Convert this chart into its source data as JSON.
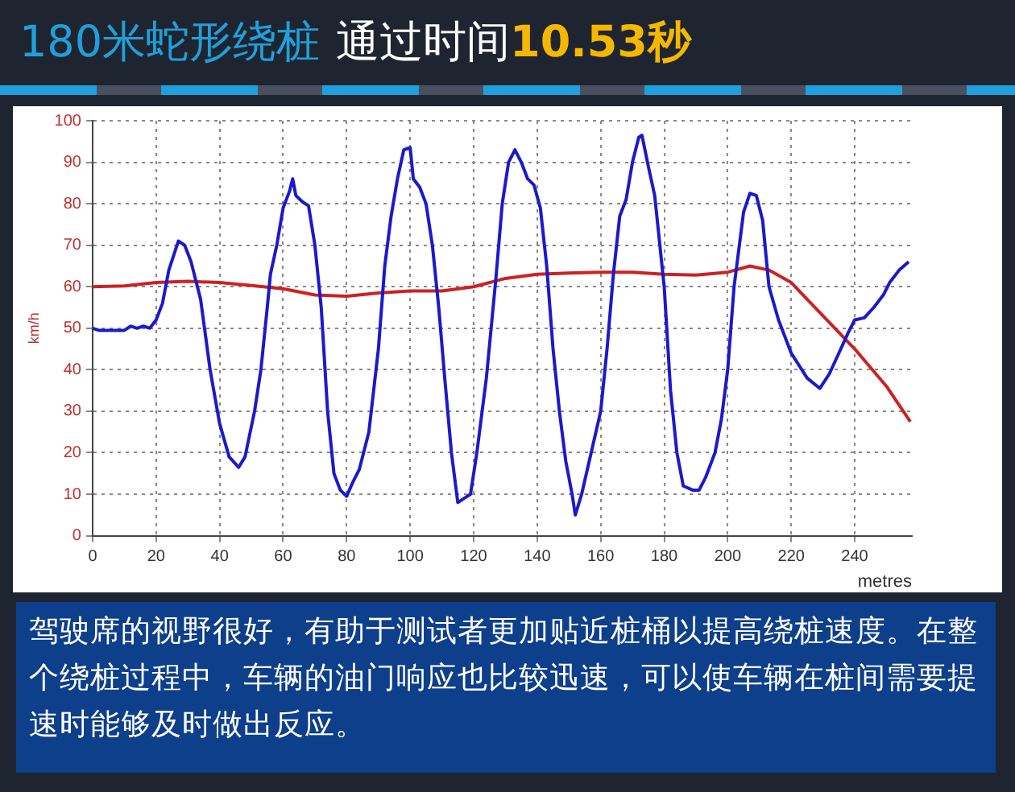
{
  "chart_data": {
    "type": "line",
    "title": "180米蛇形绕桩",
    "subtitle": "通过时间",
    "annotations": [
      "10.53秒",
      "驾驶席的视野很好，有助于测试者更加贴近桩桶以提高绕桩速度。在整个绕桩过程中，车辆的油门响应也比较迅速，可以使车辆在桩间需要提速时能够及时做出反应。"
    ],
    "xlabel": "metres",
    "ylabel": "km/h",
    "xlim": [
      0,
      258
    ],
    "xticks": [
      0,
      20,
      40,
      60,
      80,
      100,
      120,
      140,
      160,
      180,
      200,
      220,
      240
    ],
    "ylim": [
      0,
      100
    ],
    "yticks": [
      0,
      10,
      20,
      30,
      40,
      50,
      60,
      70,
      80,
      90,
      100
    ],
    "grid": true,
    "legend": false,
    "marker": "none",
    "line_style": "solid",
    "series": [
      {
        "color": "#1a1acc",
        "x": [
          0,
          2,
          10,
          12,
          14,
          16,
          18,
          20,
          22,
          24,
          27,
          29,
          31,
          34,
          37,
          40,
          43,
          46,
          48,
          51,
          53,
          55,
          56,
          58,
          60,
          62,
          63,
          64,
          66,
          68,
          70,
          72,
          74,
          76,
          78,
          80,
          82,
          84,
          87,
          90,
          92,
          94,
          96,
          98,
          100,
          101,
          103,
          105,
          107,
          109,
          111,
          113,
          115,
          117,
          119,
          121,
          124,
          127,
          129,
          131,
          133,
          135,
          137,
          139,
          141,
          143,
          145,
          147,
          149,
          151,
          152,
          154,
          157,
          160,
          162,
          164,
          166,
          168,
          170,
          172,
          173,
          175,
          177,
          180,
          182,
          184,
          186,
          189,
          191,
          193,
          196,
          198,
          200,
          202,
          205,
          207,
          209,
          211,
          213,
          216,
          220,
          225,
          229,
          232,
          235,
          238,
          240,
          243,
          246,
          249,
          251,
          254,
          257
        ],
        "values": [
          50,
          49.5,
          49.5,
          50.5,
          50,
          50.5,
          50,
          52,
          56,
          64,
          71,
          70,
          66,
          57,
          40,
          27,
          19,
          16.5,
          19,
          30,
          40,
          55,
          63,
          70,
          79,
          83,
          86,
          82,
          80.5,
          79.5,
          70,
          55,
          30,
          15,
          11,
          9.5,
          13,
          16,
          25,
          45,
          65,
          77,
          86,
          93,
          93.5,
          86,
          84,
          80,
          70,
          55,
          37,
          20,
          8,
          9,
          10,
          20,
          38,
          62,
          80,
          90,
          93,
          90,
          86,
          84.5,
          79,
          65,
          45,
          30,
          18,
          10,
          5,
          10,
          20,
          30,
          45,
          63,
          77,
          81,
          90,
          96,
          96.5,
          89,
          82,
          60,
          35,
          20,
          12,
          11,
          11,
          14,
          20,
          28,
          40,
          60,
          78,
          82.5,
          82,
          76,
          60,
          52,
          44,
          38,
          35.5,
          39,
          44,
          49,
          52,
          52.5,
          55,
          58,
          61,
          64,
          66
        ]
      },
      {
        "color": "#cc2222",
        "x": [
          0,
          10,
          20,
          30,
          40,
          50,
          60,
          70,
          80,
          90,
          100,
          110,
          120,
          130,
          140,
          150,
          160,
          170,
          180,
          190,
          200,
          207,
          213,
          220,
          230,
          240,
          250,
          257.5
        ],
        "values": [
          60,
          60.2,
          61,
          61.3,
          61,
          60.3,
          59.5,
          58,
          57.7,
          58.5,
          59,
          59,
          60,
          62,
          63,
          63.3,
          63.5,
          63.5,
          63,
          62.8,
          63.5,
          65,
          64,
          61,
          53,
          45,
          36,
          27.5
        ]
      }
    ]
  }
}
